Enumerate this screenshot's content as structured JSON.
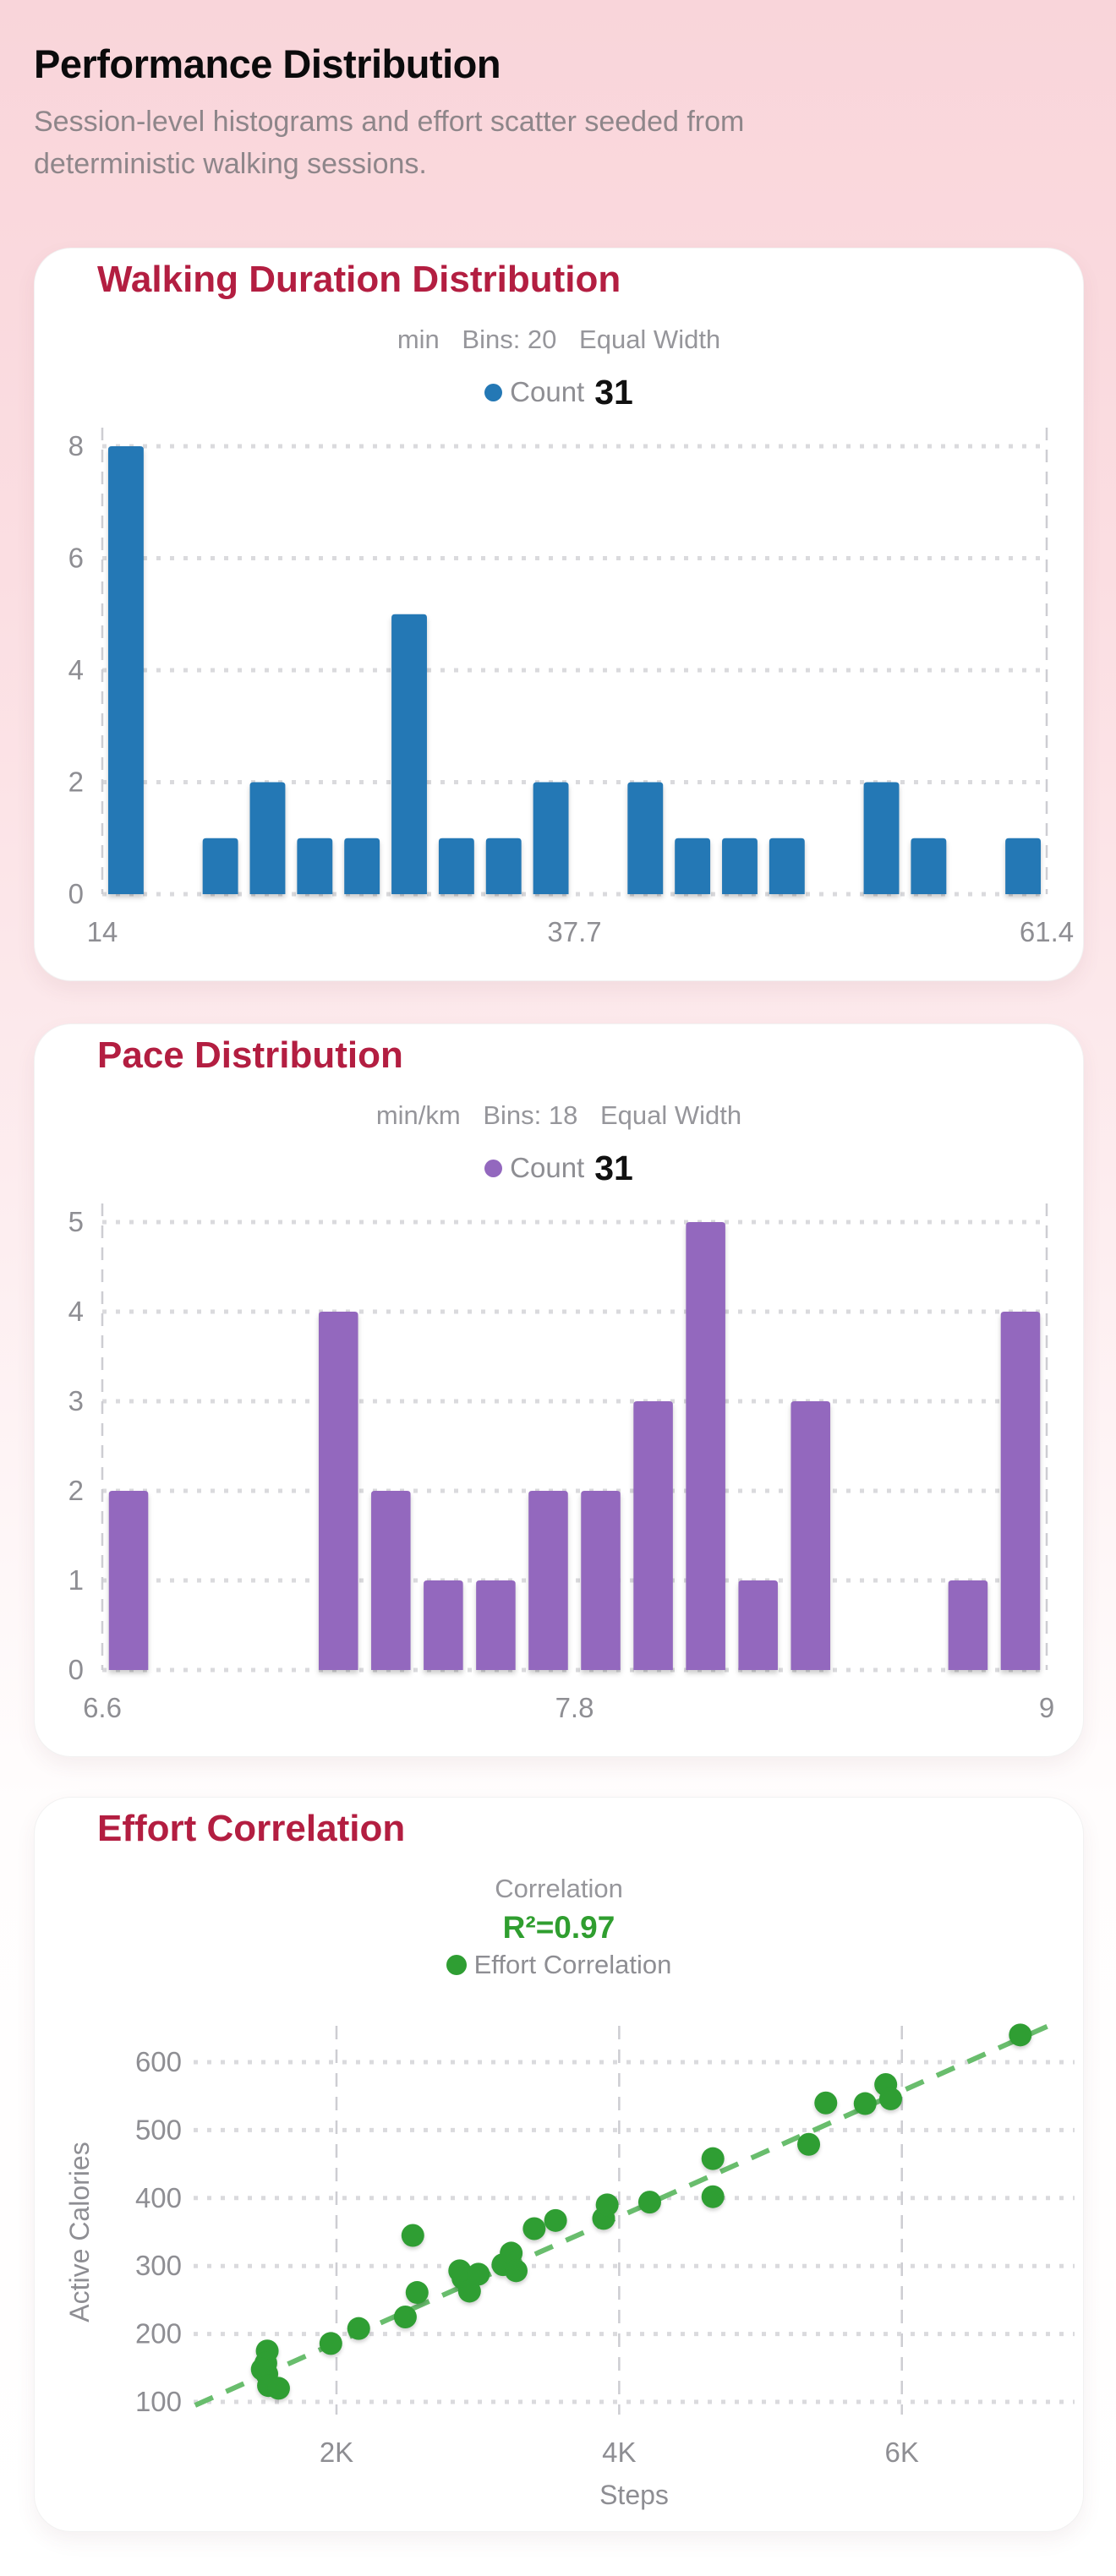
{
  "page": {
    "title": "Performance Distribution",
    "subtitle_lines": [
      "Session-level histograms and effort scatter seeded from",
      "deterministic walking sessions."
    ]
  },
  "colors": {
    "card_title": "#b31e41",
    "histogram_blue": "#2478b5",
    "histogram_purple": "#9368be",
    "scatter_green": "#2f9e33",
    "trend_green": "#69bd6d",
    "r_squared_green": "#2f9e2f",
    "grid_dotted": "#dadadd",
    "grid_dashed": "#cdcdd2",
    "tick_text": "#8e8e93",
    "background_pink": "#f9d5da"
  },
  "cards": [
    {
      "title": "Walking Duration Distribution",
      "meta_unit": "min",
      "meta_bins": "Bins: 20",
      "meta_mode": "Equal Width",
      "legend_label": "Count",
      "legend_value": "31"
    },
    {
      "title": "Pace Distribution",
      "meta_unit": "min/km",
      "meta_bins": "Bins: 18",
      "meta_mode": "Equal Width",
      "legend_label": "Count",
      "legend_value": "31"
    },
    {
      "title": "Effort Correlation",
      "meta_label": "Correlation",
      "r_squared": "R²=0.97",
      "legend_label": "Effort Correlation"
    }
  ],
  "chart_data": [
    {
      "type": "bar",
      "variant": "histogram",
      "title": "Walking Duration Distribution",
      "unit": "min",
      "bins": 20,
      "bin_mode": "Equal Width",
      "total_count": 31,
      "x_range": [
        14,
        61.4
      ],
      "x_tick_labels": [
        "14",
        "37.7",
        "61.4"
      ],
      "yticks": [
        0,
        2,
        4,
        6,
        8
      ],
      "ylim": [
        0,
        8
      ],
      "values": [
        8,
        0,
        1,
        2,
        1,
        1,
        5,
        1,
        1,
        2,
        0,
        2,
        1,
        1,
        1,
        0,
        2,
        1,
        0,
        1
      ],
      "bar_color": "#2478b5",
      "grid": "dotted-horizontal"
    },
    {
      "type": "bar",
      "variant": "histogram",
      "title": "Pace Distribution",
      "unit": "min/km",
      "bins": 18,
      "bin_mode": "Equal Width",
      "total_count": 31,
      "x_range": [
        6.6,
        9
      ],
      "x_tick_labels": [
        "6.6",
        "7.8",
        "9"
      ],
      "yticks": [
        0,
        1,
        2,
        3,
        4,
        5
      ],
      "ylim": [
        0,
        5
      ],
      "values": [
        2,
        0,
        0,
        0,
        4,
        2,
        1,
        1,
        2,
        2,
        3,
        5,
        1,
        3,
        0,
        0,
        1,
        4
      ],
      "bar_color": "#9368be",
      "grid": "dotted-horizontal"
    },
    {
      "type": "scatter",
      "title": "Effort Correlation",
      "subtitle": "Correlation",
      "r_squared_label": "R²=0.97",
      "r_squared": 0.97,
      "xlabel": "Steps",
      "ylabel": "Active Calories",
      "xticks": [
        {
          "value": 2000,
          "label": "2K"
        },
        {
          "value": 4000,
          "label": "4K"
        },
        {
          "value": 6000,
          "label": "6K"
        }
      ],
      "yticks": [
        100,
        200,
        300,
        400,
        500,
        600
      ],
      "xlim": [
        1000,
        7200
      ],
      "ylim": [
        80,
        660
      ],
      "point_color": "#2f9e33",
      "points": [
        [
          1510,
          175
        ],
        [
          1500,
          157
        ],
        [
          1507,
          141
        ],
        [
          1475,
          148
        ],
        [
          1519,
          124
        ],
        [
          1590,
          120
        ],
        [
          1960,
          186
        ],
        [
          2157,
          208
        ],
        [
          2487,
          225
        ],
        [
          2540,
          345
        ],
        [
          2570,
          261
        ],
        [
          2872,
          293
        ],
        [
          2895,
          282
        ],
        [
          2941,
          263
        ],
        [
          3004,
          288
        ],
        [
          3178,
          302
        ],
        [
          3236,
          319
        ],
        [
          3271,
          293
        ],
        [
          3399,
          355
        ],
        [
          3550,
          367
        ],
        [
          3890,
          370
        ],
        [
          3915,
          390
        ],
        [
          4216,
          394
        ],
        [
          4663,
          458
        ],
        [
          4663,
          402
        ],
        [
          5341,
          479
        ],
        [
          5462,
          540
        ],
        [
          5740,
          539
        ],
        [
          5886,
          567
        ],
        [
          5921,
          546
        ],
        [
          6838,
          640
        ]
      ],
      "trend": {
        "style": "dashed",
        "color": "#69bd6d",
        "slope": 0.0925,
        "intercept": 2.5,
        "x_start": 1000,
        "x_end": 7060
      }
    }
  ]
}
